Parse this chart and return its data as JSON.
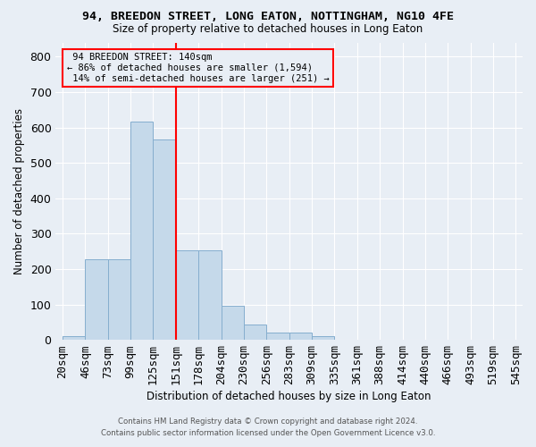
{
  "title": "94, BREEDON STREET, LONG EATON, NOTTINGHAM, NG10 4FE",
  "subtitle": "Size of property relative to detached houses in Long Eaton",
  "xlabel": "Distribution of detached houses by size in Long Eaton",
  "ylabel": "Number of detached properties",
  "bar_values": [
    10,
    228,
    228,
    617,
    567,
    252,
    252,
    97,
    44,
    20,
    20,
    10,
    0,
    0,
    0,
    0,
    0,
    0,
    0,
    0
  ],
  "bar_labels": [
    "20sqm",
    "46sqm",
    "73sqm",
    "99sqm",
    "125sqm",
    "151sqm",
    "178sqm",
    "204sqm",
    "230sqm",
    "256sqm",
    "283sqm",
    "309sqm",
    "335sqm",
    "361sqm",
    "388sqm",
    "414sqm",
    "440sqm",
    "466sqm",
    "493sqm",
    "519sqm",
    "545sqm"
  ],
  "bar_color": "#c5d9ea",
  "bar_edgecolor": "#85aece",
  "ylim": [
    0,
    840
  ],
  "yticks": [
    0,
    100,
    200,
    300,
    400,
    500,
    600,
    700,
    800
  ],
  "property_label": "94 BREEDON STREET: 140sqm",
  "pct_smaller": "86% of detached houses are smaller (1,594)",
  "pct_larger": "14% of semi-detached houses are larger (251)",
  "vline_x": 5.0,
  "bg_color": "#e8eef5",
  "grid_color": "#ffffff",
  "footer_line1": "Contains HM Land Registry data © Crown copyright and database right 2024.",
  "footer_line2": "Contains public sector information licensed under the Open Government Licence v3.0."
}
